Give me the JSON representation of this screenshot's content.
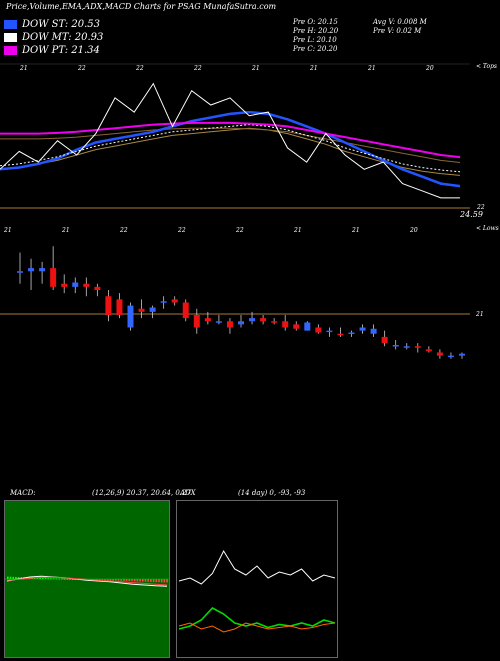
{
  "header": {
    "title": "Price,Volume,EMA,ADX,MACD Charts for PSAG MunafaSutra.com"
  },
  "legend": [
    {
      "label": "DOW ST: 20.53",
      "color": "#2255ff"
    },
    {
      "label": "DOW MT: 20.93",
      "color": "#ffffff"
    },
    {
      "label": "DOW PT: 21.34",
      "color": "#ee00ee"
    }
  ],
  "info": {
    "col1": [
      "Pre O: 20.15",
      "Pre H: 20.20",
      "Pre L: 20.10",
      "Pre C: 20.20"
    ],
    "col2": [
      "Avg V: 0.008 M",
      "Pre V: 0.02 M"
    ]
  },
  "labels": {
    "tops": "< Tops",
    "lows": "< Lows",
    "level_upper": "24.59",
    "level_upper_small": "22",
    "level_lower": "21"
  },
  "colors": {
    "bull": "#3366ff",
    "bear": "#ee1111",
    "macd_bg": "#006600",
    "adx_bg": "#000000",
    "dow_st": "#2255ff",
    "dow_mt": "#ffffff",
    "dow_pt": "#ee00ee"
  },
  "chart_data": [
    {
      "type": "line",
      "name_ref": "upper-ema-panel",
      "tick_labels": [
        "21",
        "22",
        "22",
        "22",
        "21",
        "21",
        "21",
        "20"
      ],
      "series": [
        {
          "name": "DOW ST",
          "color": "#2255ff",
          "values": [
            21.0,
            21.05,
            21.15,
            21.3,
            21.55,
            21.75,
            21.85,
            21.95,
            22.05,
            22.2,
            22.35,
            22.45,
            22.55,
            22.6,
            22.55,
            22.4,
            22.2,
            22.0,
            21.75,
            21.5,
            21.25,
            21.0,
            20.8,
            20.6,
            20.53
          ]
        },
        {
          "name": "DOW MT",
          "color": "#ffffff",
          "values": [
            21.1,
            21.15,
            21.25,
            21.35,
            21.5,
            21.65,
            21.75,
            21.85,
            21.95,
            22.05,
            22.1,
            22.15,
            22.2,
            22.25,
            22.2,
            22.1,
            21.95,
            21.8,
            21.6,
            21.45,
            21.3,
            21.15,
            21.05,
            20.98,
            20.93
          ]
        },
        {
          "name": "DOW PT",
          "color": "#ee00ee",
          "values": [
            22.0,
            22.0,
            22.0,
            22.02,
            22.05,
            22.1,
            22.15,
            22.2,
            22.25,
            22.28,
            22.3,
            22.3,
            22.3,
            22.28,
            22.25,
            22.2,
            22.1,
            22.0,
            21.9,
            21.8,
            21.7,
            21.6,
            21.5,
            21.4,
            21.34
          ]
        },
        {
          "name": "Close",
          "color": "#ffffff",
          "values": [
            21.0,
            21.5,
            21.2,
            21.8,
            21.4,
            22.0,
            23.0,
            22.6,
            23.4,
            22.2,
            23.2,
            22.8,
            23.0,
            22.5,
            22.6,
            21.6,
            21.2,
            22.0,
            21.4,
            21.0,
            21.2,
            20.6,
            20.4,
            20.2,
            20.2
          ]
        }
      ]
    },
    {
      "type": "candlestick",
      "name_ref": "price-panel",
      "tick_labels": [
        "21",
        "21",
        "22",
        "22",
        "22",
        "21",
        "21",
        "20"
      ],
      "reference_level": 21,
      "candles": [
        {
          "o": 21.8,
          "h": 22.1,
          "l": 21.6,
          "c": 21.8
        },
        {
          "o": 21.8,
          "h": 22.0,
          "l": 21.5,
          "c": 21.85
        },
        {
          "o": 21.8,
          "h": 21.95,
          "l": 21.6,
          "c": 21.85
        },
        {
          "o": 21.85,
          "h": 22.2,
          "l": 21.5,
          "c": 21.55
        },
        {
          "o": 21.6,
          "h": 21.75,
          "l": 21.45,
          "c": 21.55
        },
        {
          "o": 21.55,
          "h": 21.7,
          "l": 21.45,
          "c": 21.62
        },
        {
          "o": 21.6,
          "h": 21.7,
          "l": 21.4,
          "c": 21.55
        },
        {
          "o": 21.55,
          "h": 21.6,
          "l": 21.4,
          "c": 21.5
        },
        {
          "o": 21.4,
          "h": 21.5,
          "l": 21.0,
          "c": 21.1
        },
        {
          "o": 21.35,
          "h": 21.45,
          "l": 21.05,
          "c": 21.1
        },
        {
          "o": 20.9,
          "h": 21.3,
          "l": 20.85,
          "c": 21.25
        },
        {
          "o": 21.2,
          "h": 21.35,
          "l": 21.05,
          "c": 21.15
        },
        {
          "o": 21.15,
          "h": 21.25,
          "l": 21.05,
          "c": 21.22
        },
        {
          "o": 21.3,
          "h": 21.4,
          "l": 21.2,
          "c": 21.32
        },
        {
          "o": 21.35,
          "h": 21.4,
          "l": 21.25,
          "c": 21.3
        },
        {
          "o": 21.3,
          "h": 21.35,
          "l": 21.0,
          "c": 21.05
        },
        {
          "o": 21.1,
          "h": 21.2,
          "l": 20.8,
          "c": 20.9
        },
        {
          "o": 21.05,
          "h": 21.15,
          "l": 20.95,
          "c": 21.0
        },
        {
          "o": 21.0,
          "h": 21.1,
          "l": 20.95,
          "c": 21.0
        },
        {
          "o": 21.0,
          "h": 21.05,
          "l": 20.8,
          "c": 20.9
        },
        {
          "o": 20.95,
          "h": 21.1,
          "l": 20.9,
          "c": 21.0
        },
        {
          "o": 21.0,
          "h": 21.15,
          "l": 20.95,
          "c": 21.05
        },
        {
          "o": 21.05,
          "h": 21.1,
          "l": 20.95,
          "c": 21.0
        },
        {
          "o": 21.0,
          "h": 21.05,
          "l": 20.95,
          "c": 20.98
        },
        {
          "o": 21.0,
          "h": 21.1,
          "l": 20.85,
          "c": 20.9
        },
        {
          "o": 20.95,
          "h": 21.0,
          "l": 20.85,
          "c": 20.88
        },
        {
          "o": 20.85,
          "h": 21.0,
          "l": 20.85,
          "c": 20.98
        },
        {
          "o": 20.9,
          "h": 20.95,
          "l": 20.8,
          "c": 20.82
        },
        {
          "o": 20.85,
          "h": 20.9,
          "l": 20.75,
          "c": 20.85
        },
        {
          "o": 20.8,
          "h": 20.9,
          "l": 20.75,
          "c": 20.78
        },
        {
          "o": 20.8,
          "h": 20.85,
          "l": 20.75,
          "c": 20.82
        },
        {
          "o": 20.85,
          "h": 20.95,
          "l": 20.8,
          "c": 20.9
        },
        {
          "o": 20.8,
          "h": 20.95,
          "l": 20.75,
          "c": 20.88
        },
        {
          "o": 20.75,
          "h": 20.85,
          "l": 20.6,
          "c": 20.65
        },
        {
          "o": 20.6,
          "h": 20.7,
          "l": 20.55,
          "c": 20.62
        },
        {
          "o": 20.6,
          "h": 20.65,
          "l": 20.55,
          "c": 20.6
        },
        {
          "o": 20.6,
          "h": 20.65,
          "l": 20.5,
          "c": 20.58
        },
        {
          "o": 20.55,
          "h": 20.6,
          "l": 20.5,
          "c": 20.52
        },
        {
          "o": 20.5,
          "h": 20.55,
          "l": 20.4,
          "c": 20.45
        },
        {
          "o": 20.45,
          "h": 20.5,
          "l": 20.4,
          "c": 20.45
        },
        {
          "o": 20.45,
          "h": 20.5,
          "l": 20.4,
          "c": 20.48
        }
      ]
    },
    {
      "type": "line",
      "name_ref": "macd-panel",
      "title": "MACD: (12,26,9) 20.37, 20.64, 0.27",
      "series": [
        {
          "name": "MACD",
          "color": "#ffffff",
          "values": [
            0.0,
            0.05,
            0.1,
            0.12,
            0.1,
            0.08,
            0.05,
            0.02,
            0.0,
            -0.02,
            -0.05,
            -0.08,
            -0.1,
            -0.12,
            -0.13
          ]
        },
        {
          "name": "Signal",
          "color": "#ff4444",
          "values": [
            0.02,
            0.04,
            0.07,
            0.09,
            0.09,
            0.08,
            0.06,
            0.04,
            0.02,
            0.0,
            -0.02,
            -0.04,
            -0.06,
            -0.08,
            -0.1
          ]
        }
      ]
    },
    {
      "type": "line",
      "name_ref": "adx-panel",
      "title": "ADX (14 day) 0, -93, -93",
      "series": [
        {
          "name": "+DI",
          "color": "#ffffff",
          "values": [
            40,
            42,
            38,
            45,
            60,
            48,
            44,
            50,
            42,
            46,
            44,
            48,
            40,
            44,
            42
          ]
        },
        {
          "name": "ADX",
          "color": "#00dd00",
          "values": [
            8,
            10,
            14,
            22,
            18,
            12,
            10,
            12,
            9,
            11,
            10,
            12,
            10,
            14,
            12
          ]
        },
        {
          "name": "-DI",
          "color": "#ff6600",
          "values": [
            10,
            12,
            8,
            10,
            6,
            8,
            12,
            10,
            8,
            9,
            10,
            8,
            9,
            11,
            12
          ]
        }
      ]
    }
  ]
}
